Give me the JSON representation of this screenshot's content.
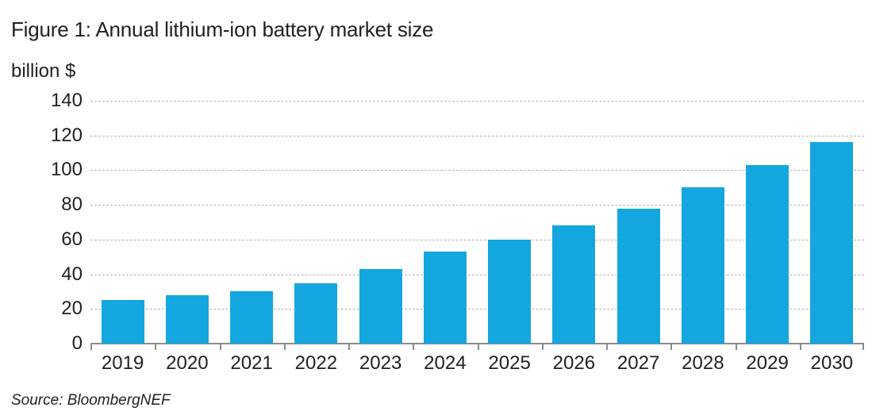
{
  "chart_data": {
    "type": "bar",
    "title": "Figure 1: Annual lithium-ion battery market size",
    "ylabel": "billion $",
    "xlabel": "",
    "source": "Source: BloombergNEF",
    "categories": [
      "2019",
      "2020",
      "2021",
      "2022",
      "2023",
      "2024",
      "2025",
      "2026",
      "2027",
      "2028",
      "2029",
      "2030"
    ],
    "values": [
      25,
      28,
      30,
      35,
      43,
      53,
      60,
      68,
      78,
      90,
      103,
      116
    ],
    "ylim": [
      0,
      140
    ],
    "yticks": [
      0,
      20,
      40,
      60,
      80,
      100,
      120,
      140
    ],
    "grid": "horizontal-dashed",
    "legend": "none",
    "colors": {
      "bar": "#14a7df",
      "grid": "#b5b5b5",
      "axis": "#8c8c8c",
      "text": "#231f20",
      "background": "#ffffff"
    }
  }
}
